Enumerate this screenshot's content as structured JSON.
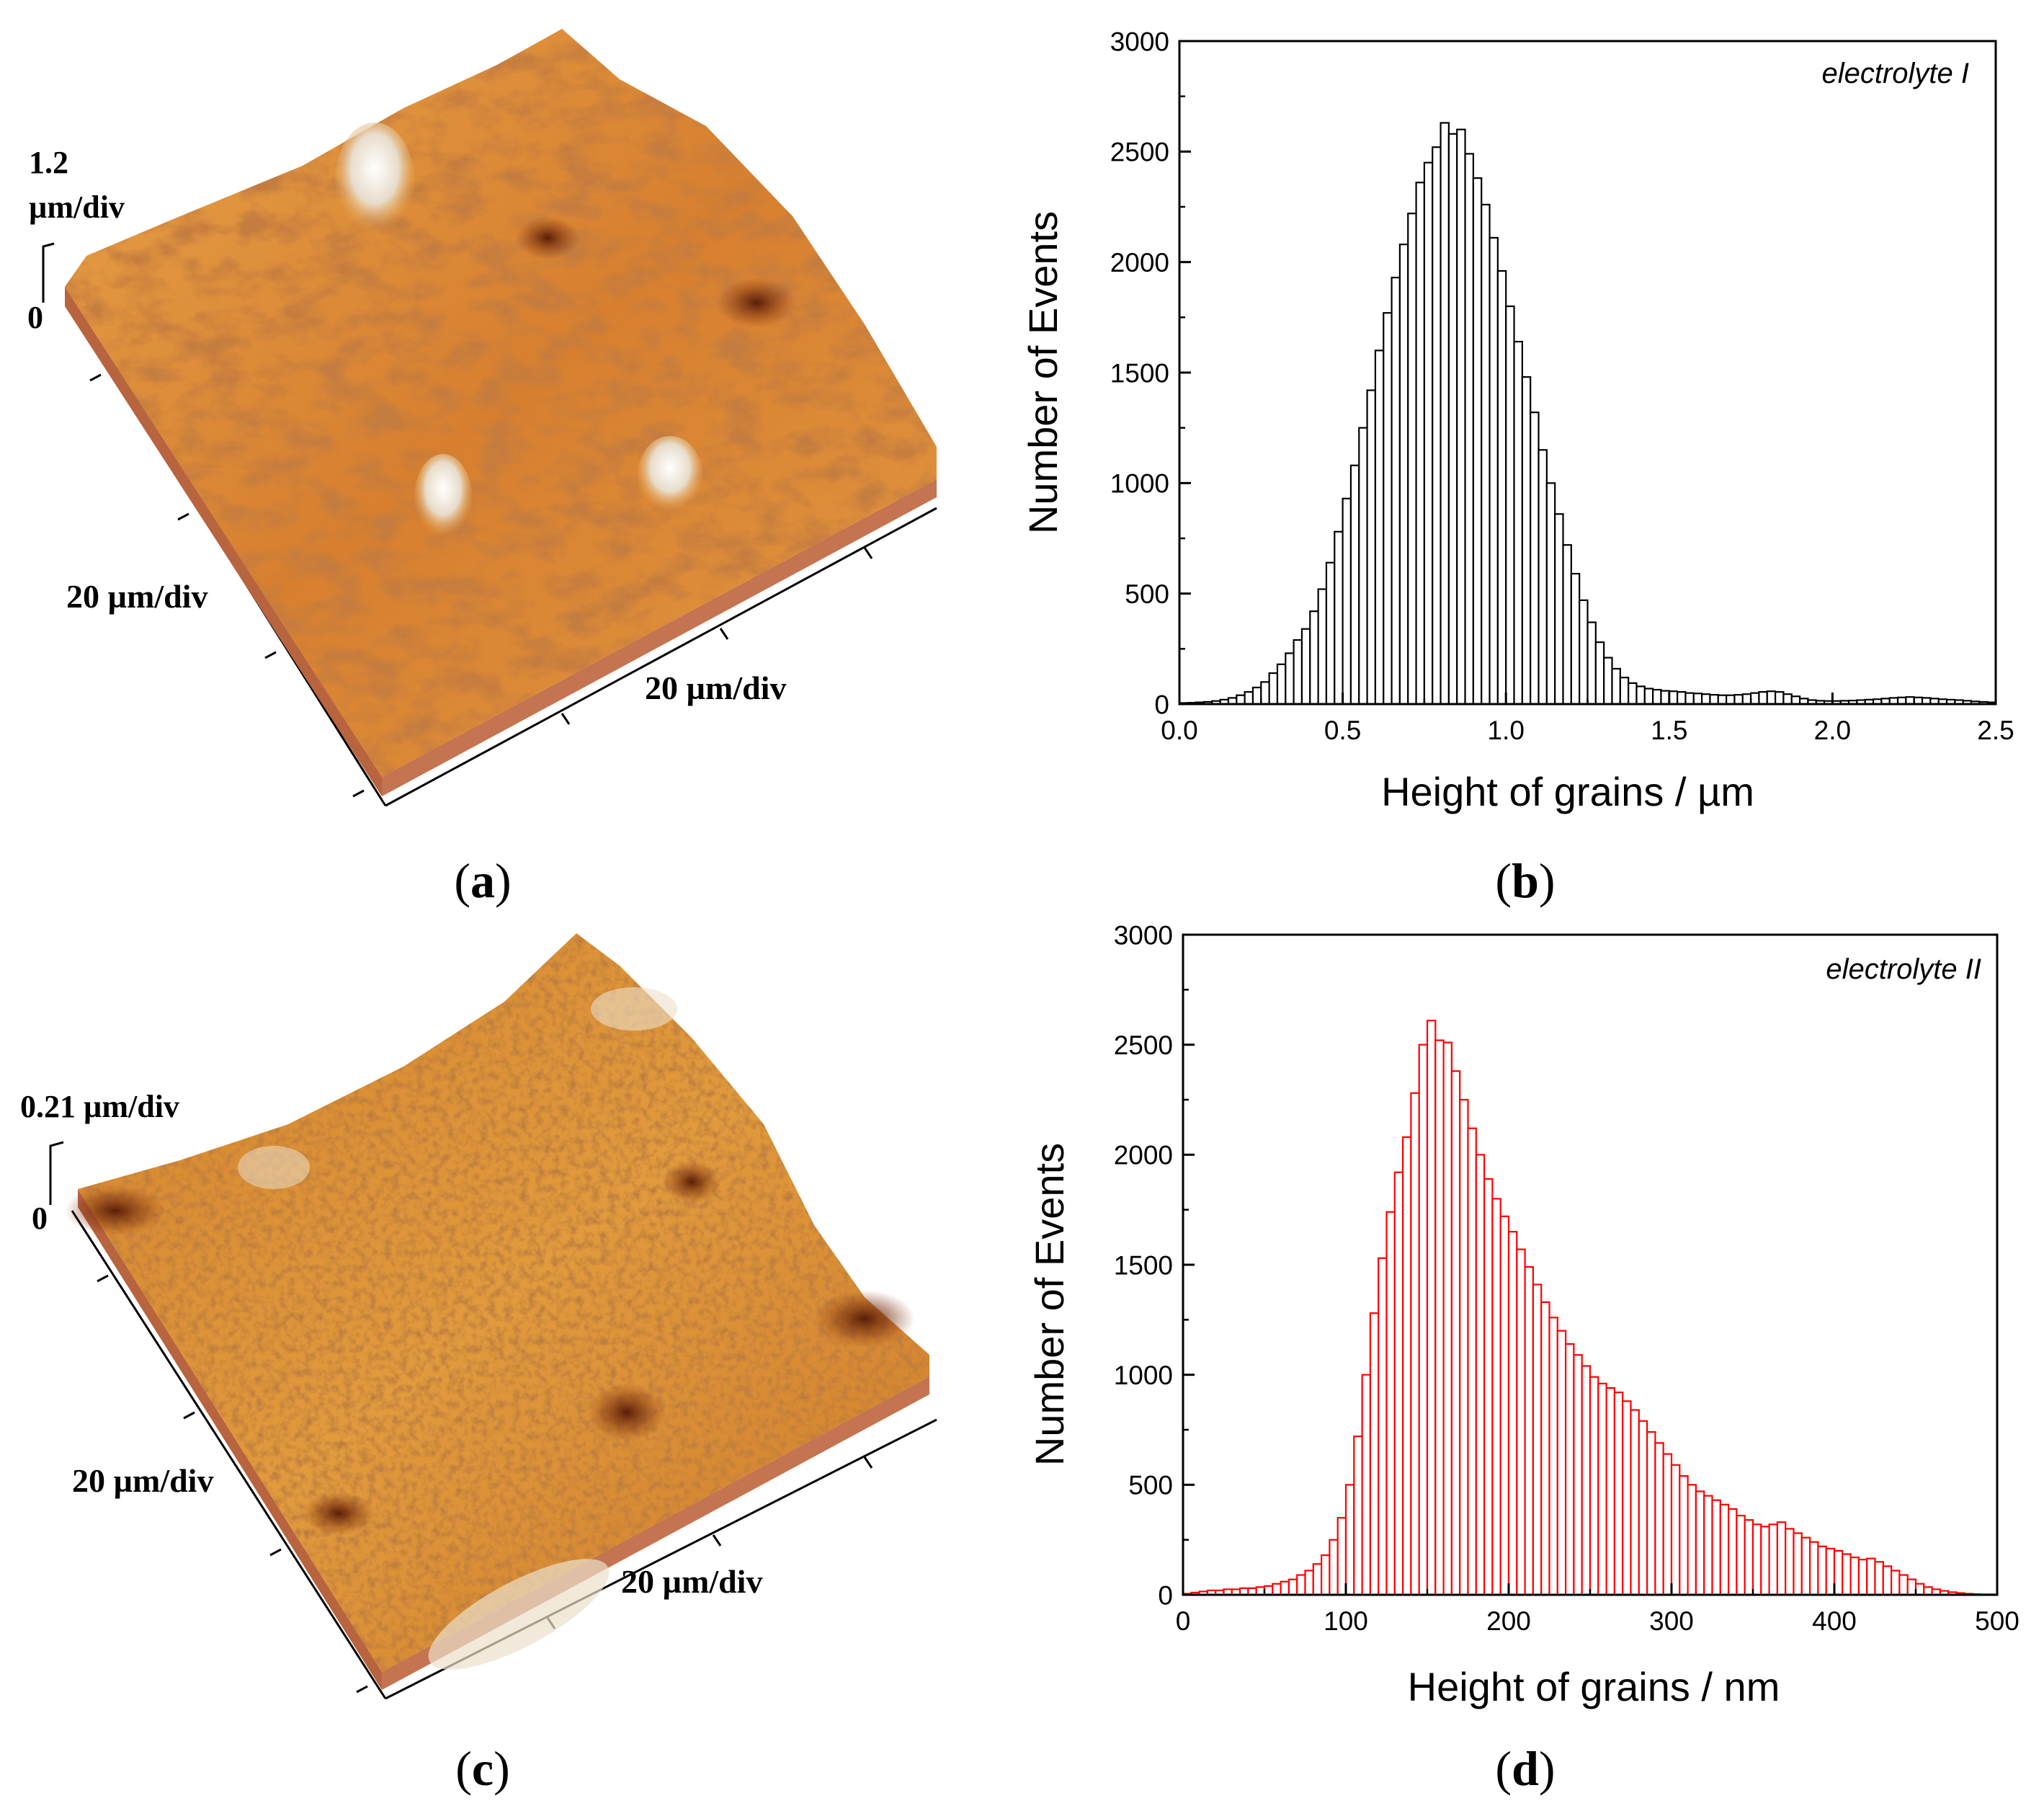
{
  "panels": {
    "a": {
      "caption_letter": "a"
    },
    "b": {
      "caption_letter": "b"
    },
    "c": {
      "caption_letter": "c"
    },
    "d": {
      "caption_letter": "d"
    }
  },
  "surface_a": {
    "z_scale_value": "1.2",
    "z_scale_unit": "µm/div",
    "z_zero": "0",
    "x_scale": "20 µm/div",
    "y_scale": "20 µm/div",
    "colors": {
      "base": "#d98a3a",
      "dark": "#7a2f0e",
      "light": "#f7e6cf",
      "side": "#c06d4a"
    }
  },
  "surface_c": {
    "z_scale": "0.21 µm/div",
    "z_zero": "0",
    "x_scale": "20 µm/div",
    "y_scale": "20 µm/div",
    "colors": {
      "base": "#d9882d",
      "dark": "#8a3510",
      "light": "#e9dcc6",
      "side": "#c06d4a"
    }
  },
  "chart_data": [
    {
      "type": "bar",
      "panel": "b",
      "annotation": "electrolyte I",
      "xlabel": "Height of grains / µm",
      "ylabel": "Number of Events",
      "xlim": [
        0,
        2.5
      ],
      "ylim": [
        0,
        3000
      ],
      "xticks": [
        "0.0",
        "0.5",
        "1.0",
        "1.5",
        "2.0",
        "2.5"
      ],
      "yticks": [
        "0",
        "500",
        "1000",
        "1500",
        "2000",
        "2500",
        "3000"
      ],
      "bin_start": 0.0,
      "bin_width": 0.025,
      "color": "#000000",
      "values": [
        5,
        6,
        8,
        10,
        14,
        20,
        28,
        40,
        55,
        75,
        100,
        140,
        180,
        230,
        290,
        340,
        420,
        520,
        640,
        780,
        930,
        1080,
        1250,
        1420,
        1600,
        1770,
        1930,
        2080,
        2220,
        2360,
        2450,
        2520,
        2630,
        2580,
        2600,
        2490,
        2380,
        2260,
        2110,
        1960,
        1800,
        1640,
        1480,
        1320,
        1150,
        1000,
        860,
        720,
        590,
        470,
        370,
        280,
        210,
        160,
        120,
        95,
        80,
        70,
        65,
        60,
        58,
        55,
        50,
        48,
        45,
        42,
        40,
        40,
        42,
        45,
        50,
        55,
        58,
        55,
        45,
        35,
        25,
        18,
        15,
        14,
        14,
        15,
        16,
        18,
        20,
        22,
        25,
        28,
        30,
        32,
        30,
        28,
        25,
        22,
        20,
        18,
        15,
        12,
        10,
        8,
        6,
        5
      ]
    },
    {
      "type": "bar",
      "panel": "d",
      "annotation": "electrolyte II",
      "xlabel": "Height of grains / nm",
      "ylabel": "Number of Events",
      "xlim": [
        0,
        500
      ],
      "ylim": [
        0,
        3000
      ],
      "xticks": [
        "0",
        "100",
        "200",
        "300",
        "400",
        "500"
      ],
      "yticks": [
        "0",
        "500",
        "1000",
        "1500",
        "2000",
        "2500",
        "3000"
      ],
      "bin_start": 0,
      "bin_width": 5,
      "color": "#ff0000",
      "values": [
        5,
        10,
        15,
        20,
        20,
        25,
        25,
        30,
        30,
        35,
        40,
        50,
        60,
        70,
        90,
        110,
        140,
        180,
        250,
        350,
        500,
        720,
        1000,
        1280,
        1530,
        1740,
        1920,
        2080,
        2280,
        2500,
        2610,
        2520,
        2510,
        2380,
        2250,
        2120,
        2000,
        1890,
        1800,
        1720,
        1650,
        1570,
        1490,
        1410,
        1330,
        1260,
        1200,
        1140,
        1090,
        1040,
        990,
        960,
        940,
        920,
        880,
        840,
        790,
        740,
        690,
        640,
        590,
        540,
        500,
        470,
        450,
        430,
        410,
        390,
        360,
        340,
        320,
        310,
        320,
        330,
        300,
        280,
        260,
        240,
        220,
        210,
        200,
        185,
        170,
        160,
        165,
        150,
        130,
        110,
        90,
        70,
        50,
        35,
        25,
        18,
        12,
        8,
        5,
        3,
        2,
        2
      ]
    }
  ]
}
